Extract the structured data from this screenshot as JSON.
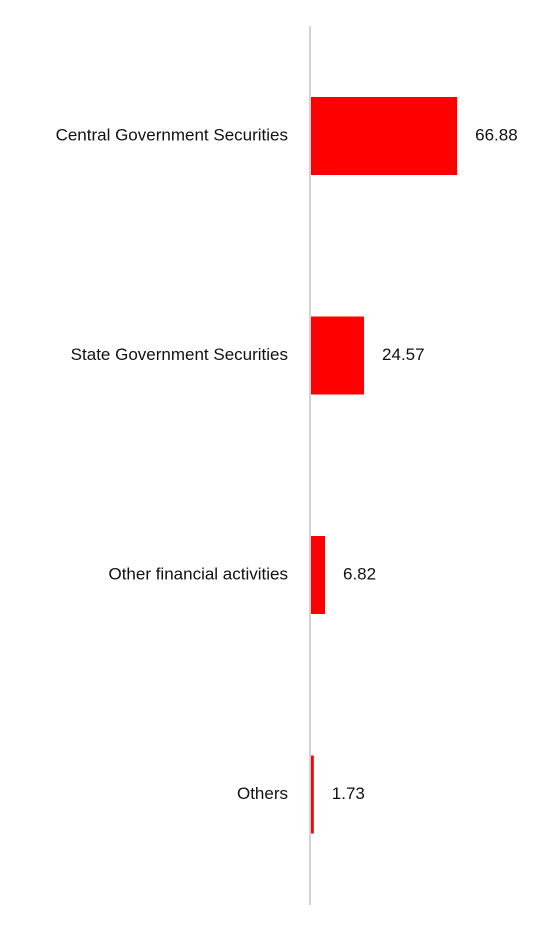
{
  "chart_data": {
    "type": "bar",
    "orientation": "horizontal",
    "categories": [
      "Central Government Securities",
      "State Government Securities",
      "Other financial activities",
      "Others"
    ],
    "values": [
      66.88,
      24.57,
      6.82,
      1.73
    ],
    "value_labels": [
      "66.88",
      "24.57",
      "6.82",
      "1.73"
    ],
    "xlim": [
      0,
      100
    ],
    "grid": false,
    "legend": "none",
    "colors": {
      "bar": "#ff0000",
      "axis": "#d3d3d3",
      "text": "#111111"
    }
  }
}
